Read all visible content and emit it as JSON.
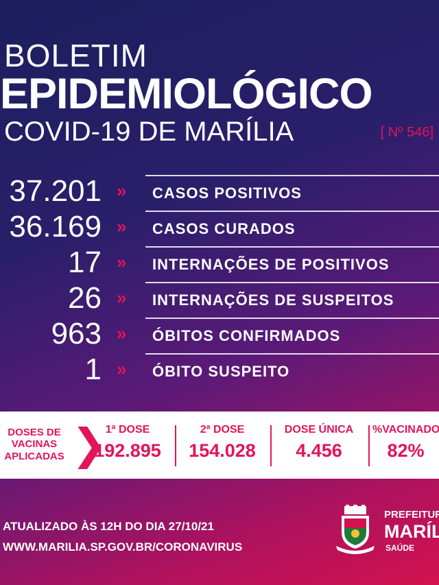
{
  "header": {
    "line1": "BOLETIM",
    "line2": "EPIDEMIOLÓGICO",
    "line3": "COVID-19 DE MARÍLIA",
    "edition": "[ Nº 546]"
  },
  "stats": [
    {
      "value": "37.201",
      "label": "CASOS POSITIVOS"
    },
    {
      "value": "36.169",
      "label": "CASOS CURADOS"
    },
    {
      "value": "17",
      "label": "INTERNAÇÕES DE POSITIVOS"
    },
    {
      "value": "26",
      "label": "INTERNAÇÕES DE SUSPEITOS"
    },
    {
      "value": "963",
      "label": "ÓBITOS CONFIRMADOS"
    },
    {
      "value": "1",
      "label": "ÓBITO SUSPEITO"
    }
  ],
  "arrow_glyph": "»",
  "vaccines": {
    "intro_line1": "DOSES DE",
    "intro_line2": "VACINAS",
    "intro_line3": "APLICADAS",
    "dose1_label": "1ª DOSE",
    "dose1_value": "192.895",
    "dose2_label": "2ª DOSE",
    "dose2_value": "154.028",
    "single_label": "DOSE ÚNICA",
    "single_value": "4.456",
    "percent_label": "%VACINADOS",
    "percent_value": "82%"
  },
  "footer": {
    "updated": "ATUALIZADO ÀS 12H DO DIA 27/10/21",
    "url_prefix": "WWW.MARILIA.SP.GOV.BR/",
    "url_suffix": "CORONAVIRUS"
  },
  "prefeitura": {
    "line1": "PREFEITURA",
    "line2": "MARÍLIA",
    "line3": "SAÚDE"
  },
  "colors": {
    "accent": "#e2145a",
    "background_top": "#1c1f5e",
    "background_bottom": "#d2124e"
  }
}
